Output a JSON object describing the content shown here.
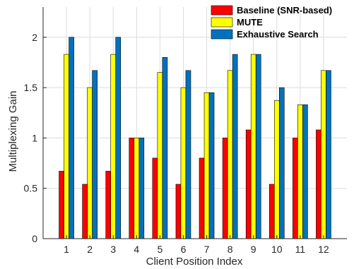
{
  "chart_data": {
    "type": "bar",
    "categories": [
      "1",
      "2",
      "3",
      "4",
      "5",
      "6",
      "7",
      "8",
      "9",
      "10",
      "11",
      "12"
    ],
    "xlabel": "Client Position Index",
    "ylabel": "Multiplexing Gain",
    "ylim": [
      0,
      2.3
    ],
    "yticks": [
      "0",
      "0.5",
      "1",
      "1.5",
      "2"
    ],
    "grid": true,
    "legend_position": "top-right",
    "series": [
      {
        "name": "Baseline (SNR-based)",
        "color": "#ff0000",
        "values": [
          0.67,
          0.54,
          0.67,
          1.0,
          0.8,
          0.54,
          0.8,
          1.0,
          1.08,
          0.54,
          1.0,
          1.08
        ]
      },
      {
        "name": "MUTE",
        "color": "#ffff00",
        "values": [
          1.83,
          1.5,
          1.83,
          1.0,
          1.65,
          1.5,
          1.45,
          1.67,
          1.83,
          1.37,
          1.33,
          1.67
        ]
      },
      {
        "name": "Exhaustive Search",
        "color": "#0072bd",
        "values": [
          2.0,
          1.67,
          2.0,
          1.0,
          1.8,
          1.67,
          1.45,
          1.83,
          1.83,
          1.5,
          1.33,
          1.67
        ]
      }
    ]
  }
}
